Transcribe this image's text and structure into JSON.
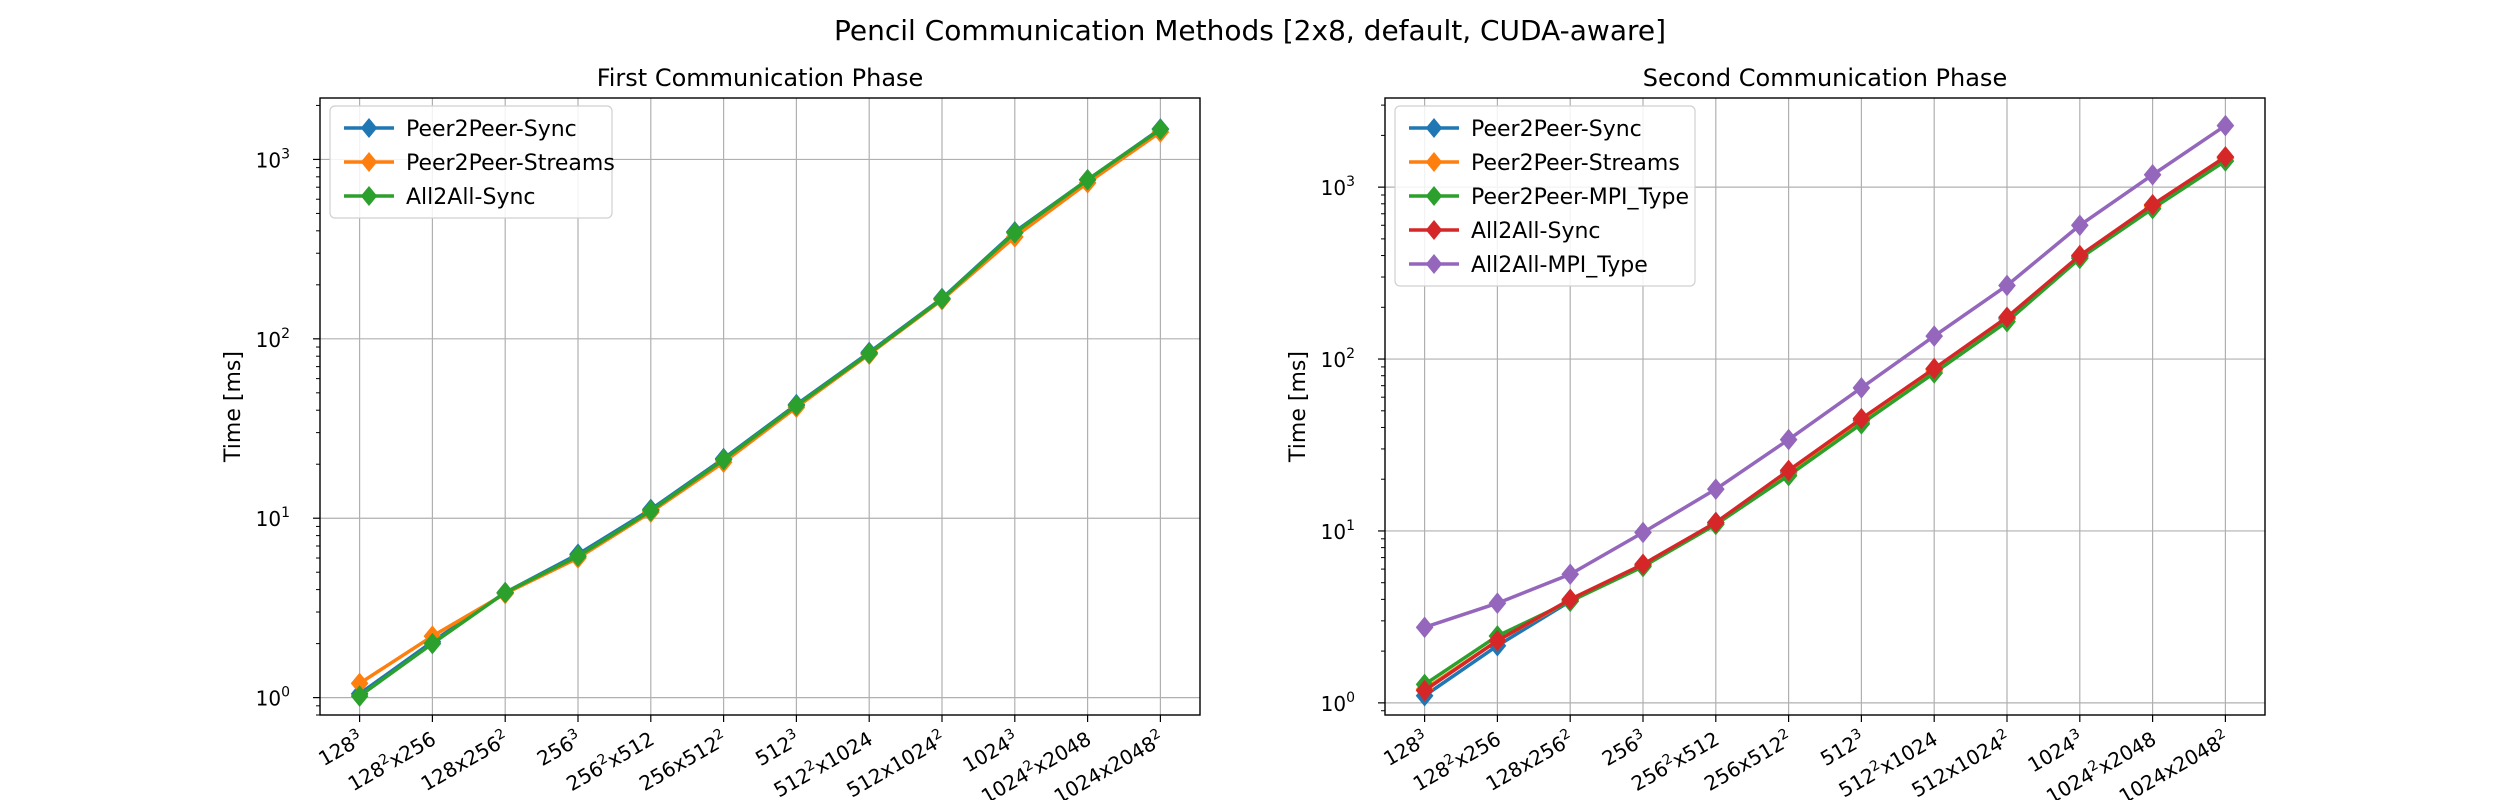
{
  "figure_title": "Pencil Communication Methods [2x8, default, CUDA-aware]",
  "chart_data": [
    {
      "type": "line",
      "title": "First Communication Phase",
      "xlabel": "",
      "ylabel": "Time [ms]",
      "yscale": "log",
      "ylim": [
        0.8,
        2200
      ],
      "grid": true,
      "legend_position": "top-left",
      "categories": [
        {
          "base": "128",
          "sup": "3",
          "rest": "",
          "rest_sup": ""
        },
        {
          "base": "128",
          "sup": "2",
          "rest": "x256",
          "rest_sup": ""
        },
        {
          "base": "128x256",
          "sup": "2",
          "rest": "",
          "rest_sup": ""
        },
        {
          "base": "256",
          "sup": "3",
          "rest": "",
          "rest_sup": ""
        },
        {
          "base": "256",
          "sup": "2",
          "rest": "x512",
          "rest_sup": ""
        },
        {
          "base": "256x512",
          "sup": "2",
          "rest": "",
          "rest_sup": ""
        },
        {
          "base": "512",
          "sup": "3",
          "rest": "",
          "rest_sup": ""
        },
        {
          "base": "512",
          "sup": "2",
          "rest": "x1024",
          "rest_sup": ""
        },
        {
          "base": "512x1024",
          "sup": "2",
          "rest": "",
          "rest_sup": ""
        },
        {
          "base": "1024",
          "sup": "3",
          "rest": "",
          "rest_sup": ""
        },
        {
          "base": "1024",
          "sup": "2",
          "rest": "x2048",
          "rest_sup": ""
        },
        {
          "base": "1024x2048",
          "sup": "2",
          "rest": "",
          "rest_sup": ""
        }
      ],
      "yticks": [
        {
          "value": 1,
          "label": "10",
          "exp": "0"
        },
        {
          "value": 10,
          "label": "10",
          "exp": "1"
        },
        {
          "value": 100,
          "label": "10",
          "exp": "2"
        },
        {
          "value": 1000,
          "label": "10",
          "exp": "3"
        }
      ],
      "series": [
        {
          "name": "Peer2Peer-Sync",
          "color": "#1f77b4",
          "values": [
            1.05,
            2.05,
            3.85,
            6.3,
            11.2,
            21.5,
            43,
            84,
            168,
            395,
            770,
            1480
          ]
        },
        {
          "name": "Peer2Peer-Streams",
          "color": "#ff7f0e",
          "values": [
            1.2,
            2.2,
            3.8,
            6.0,
            10.8,
            20.5,
            41.5,
            82,
            165,
            370,
            740,
            1420
          ]
        },
        {
          "name": "All2All-Sync",
          "color": "#2ca02c",
          "values": [
            1.02,
            2.0,
            3.85,
            6.15,
            11.0,
            21.2,
            42.5,
            83,
            167,
            390,
            770,
            1470
          ]
        }
      ]
    },
    {
      "type": "line",
      "title": "Second Communication Phase",
      "xlabel": "",
      "ylabel": "Time [ms]",
      "yscale": "log",
      "ylim": [
        0.85,
        3300
      ],
      "grid": true,
      "legend_position": "top-left",
      "categories": [
        {
          "base": "128",
          "sup": "3",
          "rest": "",
          "rest_sup": ""
        },
        {
          "base": "128",
          "sup": "2",
          "rest": "x256",
          "rest_sup": ""
        },
        {
          "base": "128x256",
          "sup": "2",
          "rest": "",
          "rest_sup": ""
        },
        {
          "base": "256",
          "sup": "3",
          "rest": "",
          "rest_sup": ""
        },
        {
          "base": "256",
          "sup": "2",
          "rest": "x512",
          "rest_sup": ""
        },
        {
          "base": "256x512",
          "sup": "2",
          "rest": "",
          "rest_sup": ""
        },
        {
          "base": "512",
          "sup": "3",
          "rest": "",
          "rest_sup": ""
        },
        {
          "base": "512",
          "sup": "2",
          "rest": "x1024",
          "rest_sup": ""
        },
        {
          "base": "512x1024",
          "sup": "2",
          "rest": "",
          "rest_sup": ""
        },
        {
          "base": "1024",
          "sup": "3",
          "rest": "",
          "rest_sup": ""
        },
        {
          "base": "1024",
          "sup": "2",
          "rest": "x2048",
          "rest_sup": ""
        },
        {
          "base": "1024x2048",
          "sup": "2",
          "rest": "",
          "rest_sup": ""
        }
      ],
      "yticks": [
        {
          "value": 1,
          "label": "10",
          "exp": "0"
        },
        {
          "value": 10,
          "label": "10",
          "exp": "1"
        },
        {
          "value": 100,
          "label": "10",
          "exp": "2"
        },
        {
          "value": 1000,
          "label": "10",
          "exp": "3"
        }
      ],
      "series": [
        {
          "name": "Peer2Peer-Sync",
          "color": "#1f77b4",
          "values": [
            1.1,
            2.15,
            3.9,
            6.3,
            11.2,
            22,
            44,
            87,
            172,
            395,
            780,
            1480
          ]
        },
        {
          "name": "Peer2Peer-Streams",
          "color": "#ff7f0e",
          "values": [
            1.2,
            2.3,
            3.95,
            6.3,
            11.0,
            21.5,
            43,
            85,
            170,
            390,
            770,
            1470
          ]
        },
        {
          "name": "Peer2Peer-MPI_Type",
          "color": "#2ca02c",
          "values": [
            1.28,
            2.45,
            3.9,
            6.2,
            10.9,
            21,
            42,
            83,
            165,
            385,
            750,
            1420
          ]
        },
        {
          "name": "All2All-Sync",
          "color": "#d62728",
          "values": [
            1.18,
            2.3,
            4.0,
            6.4,
            11.2,
            22.5,
            45,
            88,
            175,
            400,
            790,
            1500
          ]
        },
        {
          "name": "All2All-MPI_Type",
          "color": "#9467bd",
          "values": [
            2.75,
            3.8,
            5.6,
            9.8,
            17.5,
            34,
            68,
            136,
            268,
            600,
            1180,
            2280
          ]
        }
      ]
    }
  ]
}
